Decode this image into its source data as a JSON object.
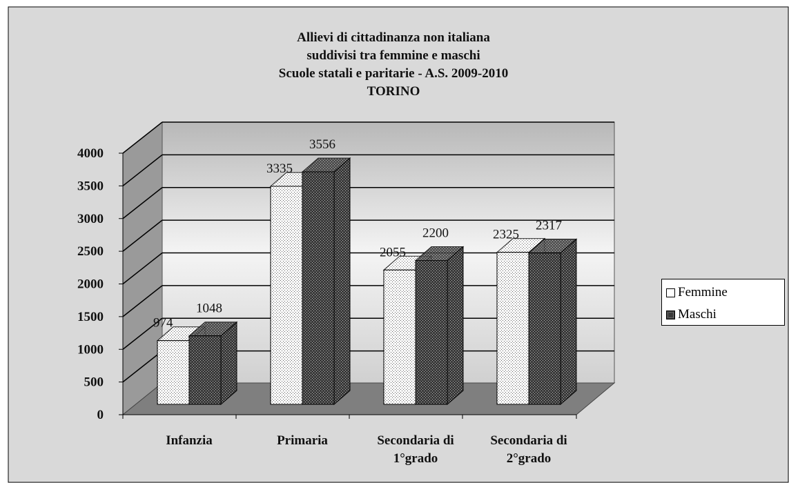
{
  "chart_data": {
    "type": "bar3d",
    "title": "Allievi di cittadinanza non italiana\nsuddivisi tra femmine e maschi\nScuole statali e paritarie  - A.S. 2009-2010\nTORINO",
    "categories": [
      "Infanzia",
      "Primaria",
      "Secondaria di 1°grado",
      "Secondaria di 2°grado"
    ],
    "series": [
      {
        "name": "Femmine",
        "color": "#ffffff",
        "values": [
          974,
          3335,
          2055,
          2325
        ]
      },
      {
        "name": "Maschi",
        "color": "#3a3a3a",
        "values": [
          1048,
          3556,
          2200,
          2317
        ]
      }
    ],
    "ylim": [
      0,
      4000
    ],
    "yticks": [
      0,
      500,
      1000,
      1500,
      2000,
      2500,
      3000,
      3500,
      4000
    ],
    "grid": true,
    "legend": "right"
  }
}
